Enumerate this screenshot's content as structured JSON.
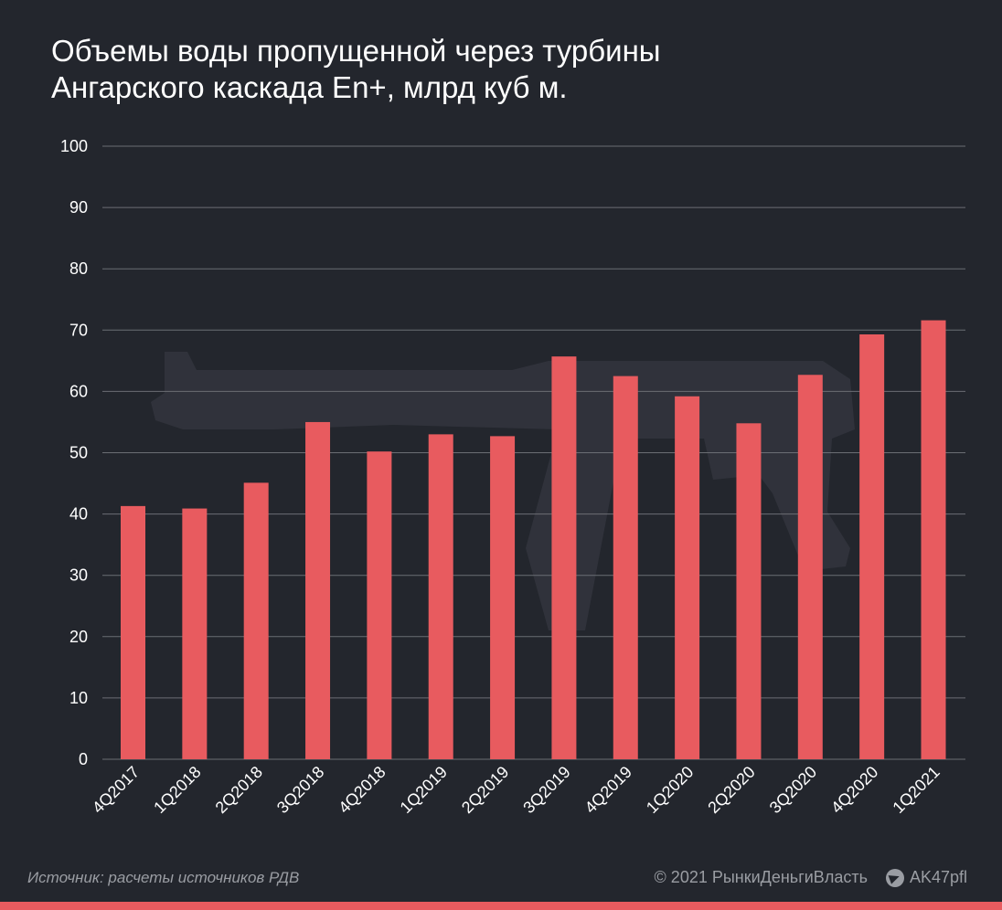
{
  "title_lines": [
    "Объемы воды пропущенной через турбины",
    "Ангарского каскада En+, млрд куб м."
  ],
  "footer": {
    "source": "Источник:  расчеты источников РДВ",
    "copyright": "© 2021  РынкиДеньгиВласть",
    "handle": "AK47pfl",
    "handle_icon": "telegram-icon"
  },
  "colors": {
    "background": "#23262d",
    "bar": "#e85b5f",
    "grid": "#6b6e74",
    "watermark": "#33363e"
  },
  "chart_data": {
    "type": "bar",
    "categories": [
      "4Q2017",
      "1Q2018",
      "2Q2018",
      "3Q2018",
      "4Q2018",
      "1Q2019",
      "2Q2019",
      "3Q2019",
      "4Q2019",
      "1Q2020",
      "2Q2020",
      "3Q2020",
      "4Q2020",
      "1Q2021"
    ],
    "values": [
      41.3,
      40.9,
      45.1,
      55.0,
      50.2,
      53.0,
      52.7,
      65.7,
      62.5,
      59.2,
      54.8,
      62.7,
      69.3,
      71.6
    ],
    "yticks": [
      0,
      10,
      20,
      30,
      40,
      50,
      60,
      70,
      80,
      90,
      100
    ],
    "ylim": [
      0,
      100
    ],
    "grid": true,
    "legend": "none"
  }
}
